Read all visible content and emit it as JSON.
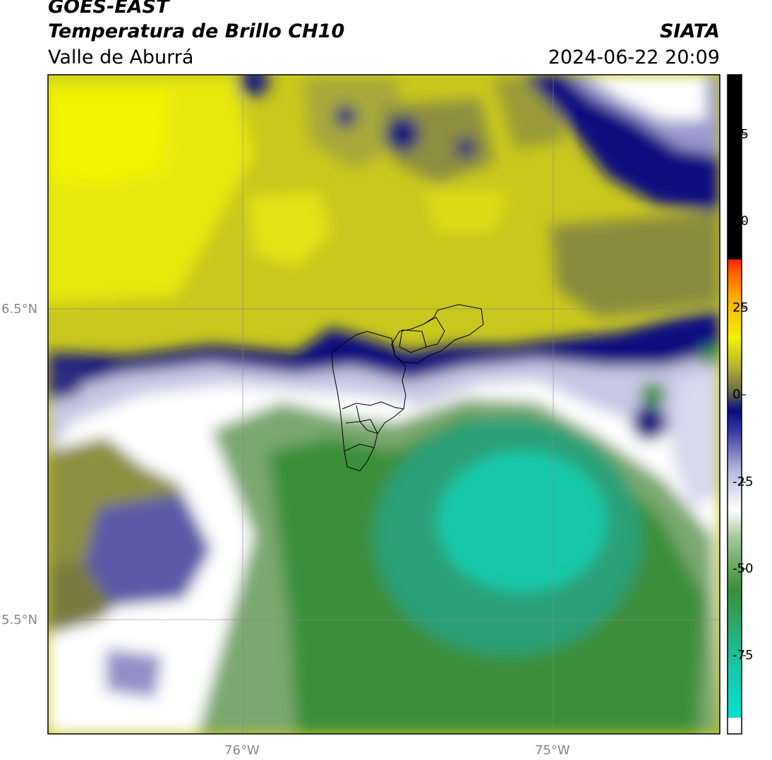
{
  "header": {
    "satellite": "GOES-EAST",
    "product": "Temperatura de Brillo CH10",
    "location": "Valle de Aburrá",
    "brand": "SIATA",
    "timestamp": "2024-06-22 20:09"
  },
  "map": {
    "lat_labels": [
      "6.5°N",
      "5.5°N"
    ],
    "lon_labels": [
      "76°W",
      "75°W"
    ],
    "gridlines": true
  },
  "colorbar": {
    "ticks": [
      "75",
      "50",
      "25",
      "0",
      "-25",
      "-50",
      "-75"
    ],
    "range": [
      -92,
      92
    ],
    "colors": {
      "black": "#000000",
      "red": "#ff2000",
      "orange": "#ff8c00",
      "yellow": "#f2f200",
      "olive": "#8f8f2e",
      "navy": "#0a0a80",
      "lavender": "#b8b8dc",
      "white": "#ffffff",
      "green": "#3a8f3a",
      "teal": "#18c8a8",
      "cyan": "#00e8e0"
    }
  }
}
